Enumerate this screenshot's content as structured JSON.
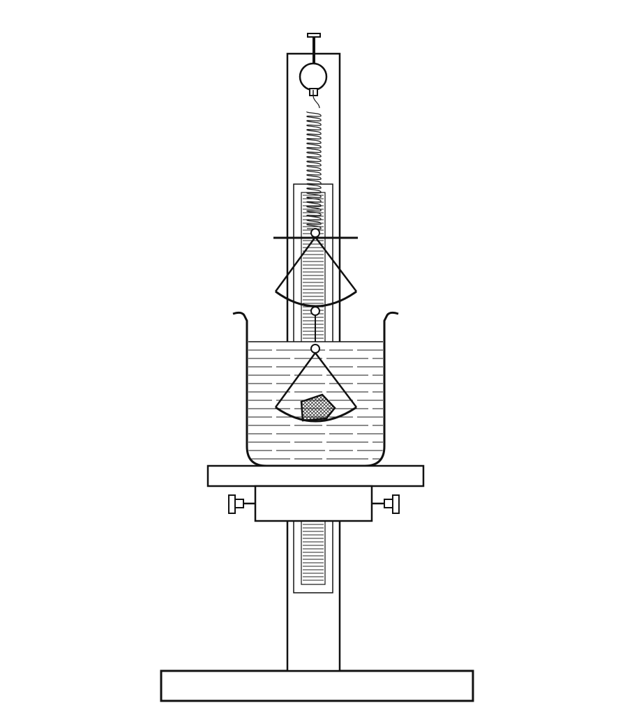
{
  "figure": {
    "kind": "physics-apparatus",
    "description_visible_text": "",
    "colors": {
      "line": "#111111",
      "background": "#ffffff",
      "hatch": "#333333"
    },
    "components": [
      {
        "name": "spring-scale-hook",
        "icon": "hook-icon"
      },
      {
        "name": "spring",
        "icon": "coil-spring-icon"
      },
      {
        "name": "upper-pan",
        "icon": "pan-icon"
      },
      {
        "name": "lower-pan",
        "icon": "pan-icon"
      },
      {
        "name": "sample-rock",
        "icon": "rock-icon"
      },
      {
        "name": "beaker-with-water",
        "icon": "beaker-icon"
      },
      {
        "name": "adjustable-platform",
        "icon": "platform-icon"
      },
      {
        "name": "vertical-stand-with-scale",
        "icon": "ruler-icon"
      },
      {
        "name": "base",
        "icon": "base-icon"
      }
    ]
  }
}
